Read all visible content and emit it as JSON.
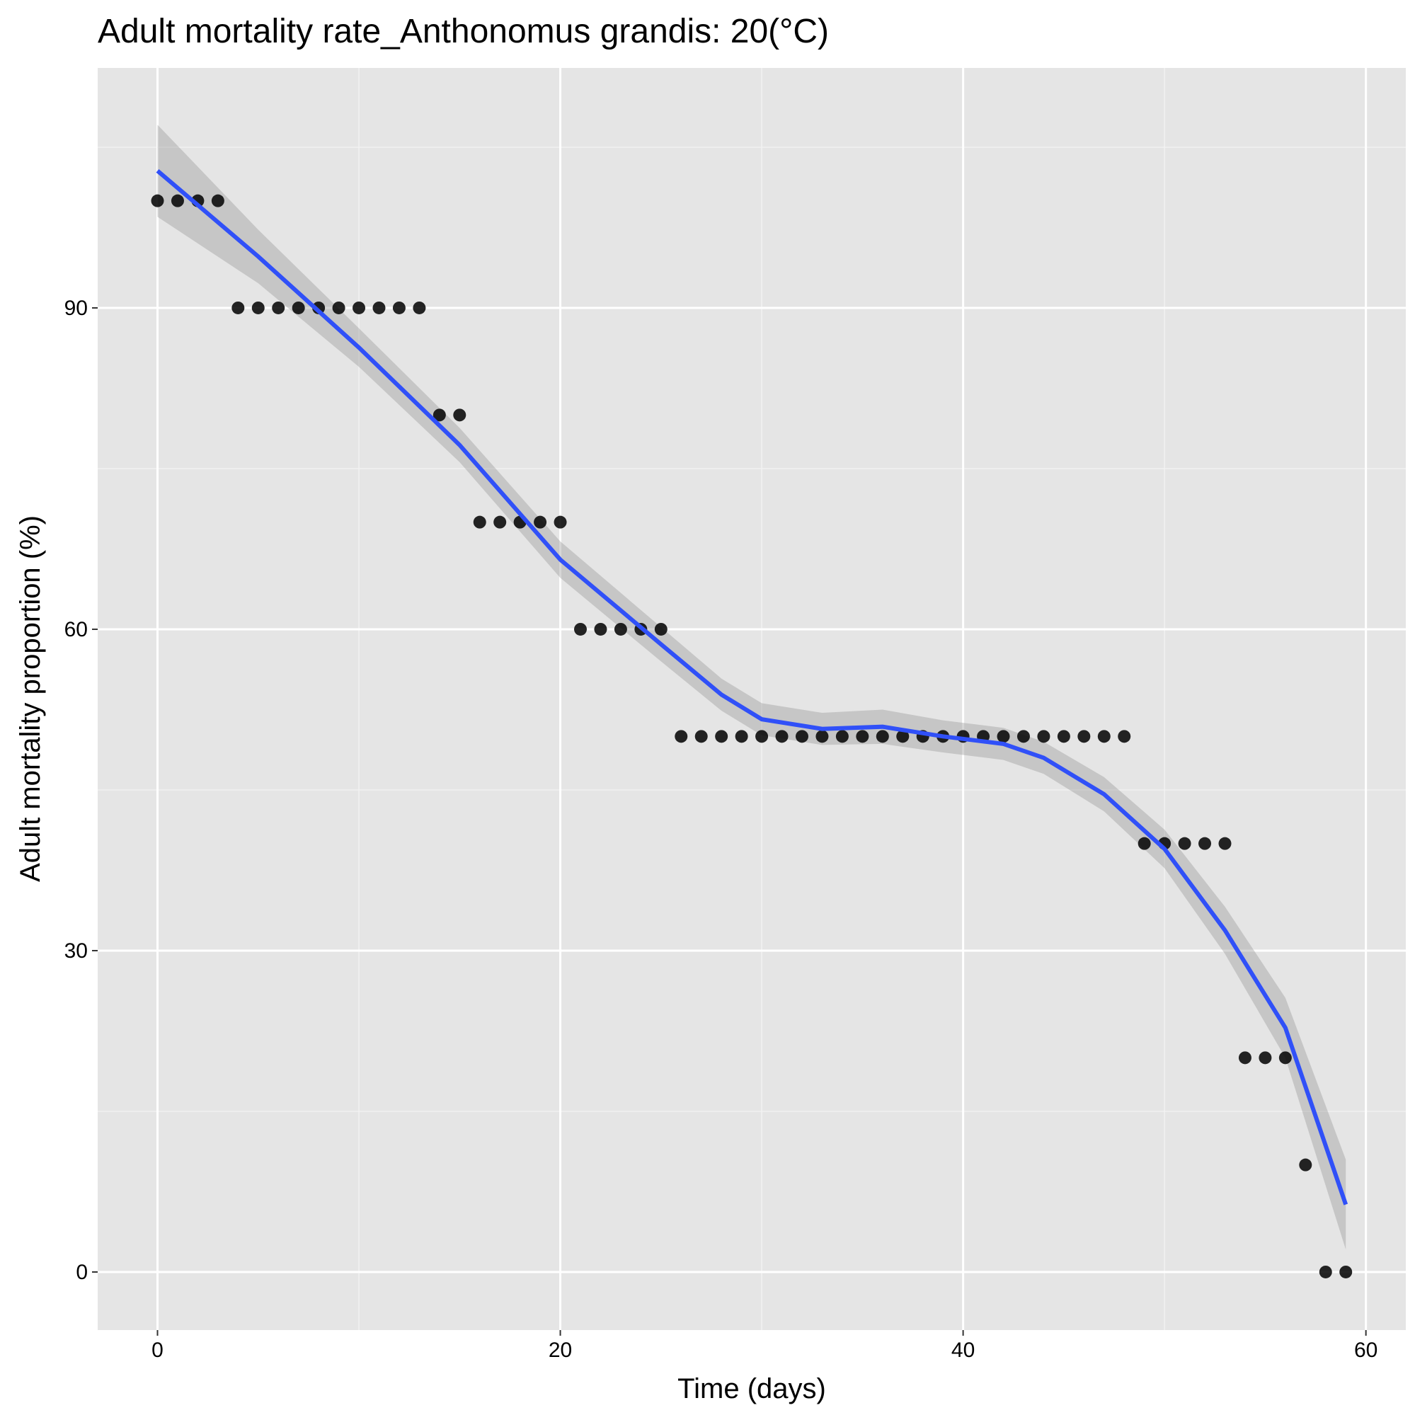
{
  "chart_data": {
    "type": "scatter",
    "title": "Adult mortality rate_Anthonomus grandis: 20(°C)",
    "x_label": "Time (days)",
    "y_label": "Adult mortality proportion (%)",
    "xlim": [
      -2.97,
      61.98
    ],
    "ylim": [
      -5.42,
      112.4
    ],
    "xticks": [
      0,
      20,
      40,
      60
    ],
    "yticks": [
      0,
      30,
      60,
      90
    ],
    "x_minor_ticks": [
      10,
      30,
      50
    ],
    "y_minor_ticks": [
      15,
      45,
      75,
      105
    ],
    "grid": true,
    "points": {
      "color": "#000000",
      "x": [
        0,
        1,
        2,
        3,
        4,
        5,
        6,
        7,
        8,
        9,
        10,
        11,
        12,
        13,
        14,
        15,
        16,
        17,
        18,
        19,
        20,
        21,
        22,
        23,
        24,
        25,
        26,
        27,
        28,
        29,
        30,
        31,
        32,
        33,
        34,
        35,
        36,
        37,
        38,
        39,
        40,
        41,
        42,
        43,
        44,
        45,
        46,
        47,
        48,
        49,
        50,
        51,
        52,
        53,
        54,
        55,
        56,
        57,
        58,
        59
      ],
      "y": [
        100,
        100,
        100,
        100,
        90,
        90,
        90,
        90,
        90,
        90,
        90,
        90,
        90,
        90,
        80,
        80,
        70,
        70,
        70,
        70,
        70,
        60,
        60,
        60,
        60,
        60,
        50,
        50,
        50,
        50,
        50,
        50,
        50,
        50,
        50,
        50,
        50,
        50,
        50,
        50,
        50,
        50,
        50,
        50,
        50,
        50,
        50,
        50,
        50,
        40,
        40,
        40,
        40,
        40,
        20,
        20,
        20,
        10,
        0,
        0
      ]
    },
    "smooth": {
      "color": "#3050f8",
      "band_color": "#999999",
      "x": [
        0,
        5,
        10,
        15,
        20,
        25,
        28,
        30,
        33,
        36,
        39,
        42,
        44,
        47,
        50,
        53,
        56,
        59
      ],
      "y": [
        102.8,
        94.8,
        86.3,
        77.2,
        66.5,
        58.6,
        53.9,
        51.6,
        50.7,
        50.9,
        50.0,
        49.3,
        48.0,
        44.6,
        39.5,
        31.9,
        22.8,
        6.3
      ],
      "lower": [
        98.5,
        92.3,
        84.5,
        75.6,
        64.8,
        57.0,
        52.4,
        50.1,
        49.2,
        49.3,
        48.5,
        47.8,
        46.5,
        43.0,
        37.7,
        29.7,
        20.0,
        2.1
      ],
      "upper": [
        107.1,
        97.3,
        88.1,
        78.8,
        68.2,
        60.2,
        55.4,
        53.1,
        52.2,
        52.5,
        51.5,
        50.8,
        49.5,
        46.2,
        41.3,
        34.1,
        25.6,
        10.5
      ]
    }
  }
}
